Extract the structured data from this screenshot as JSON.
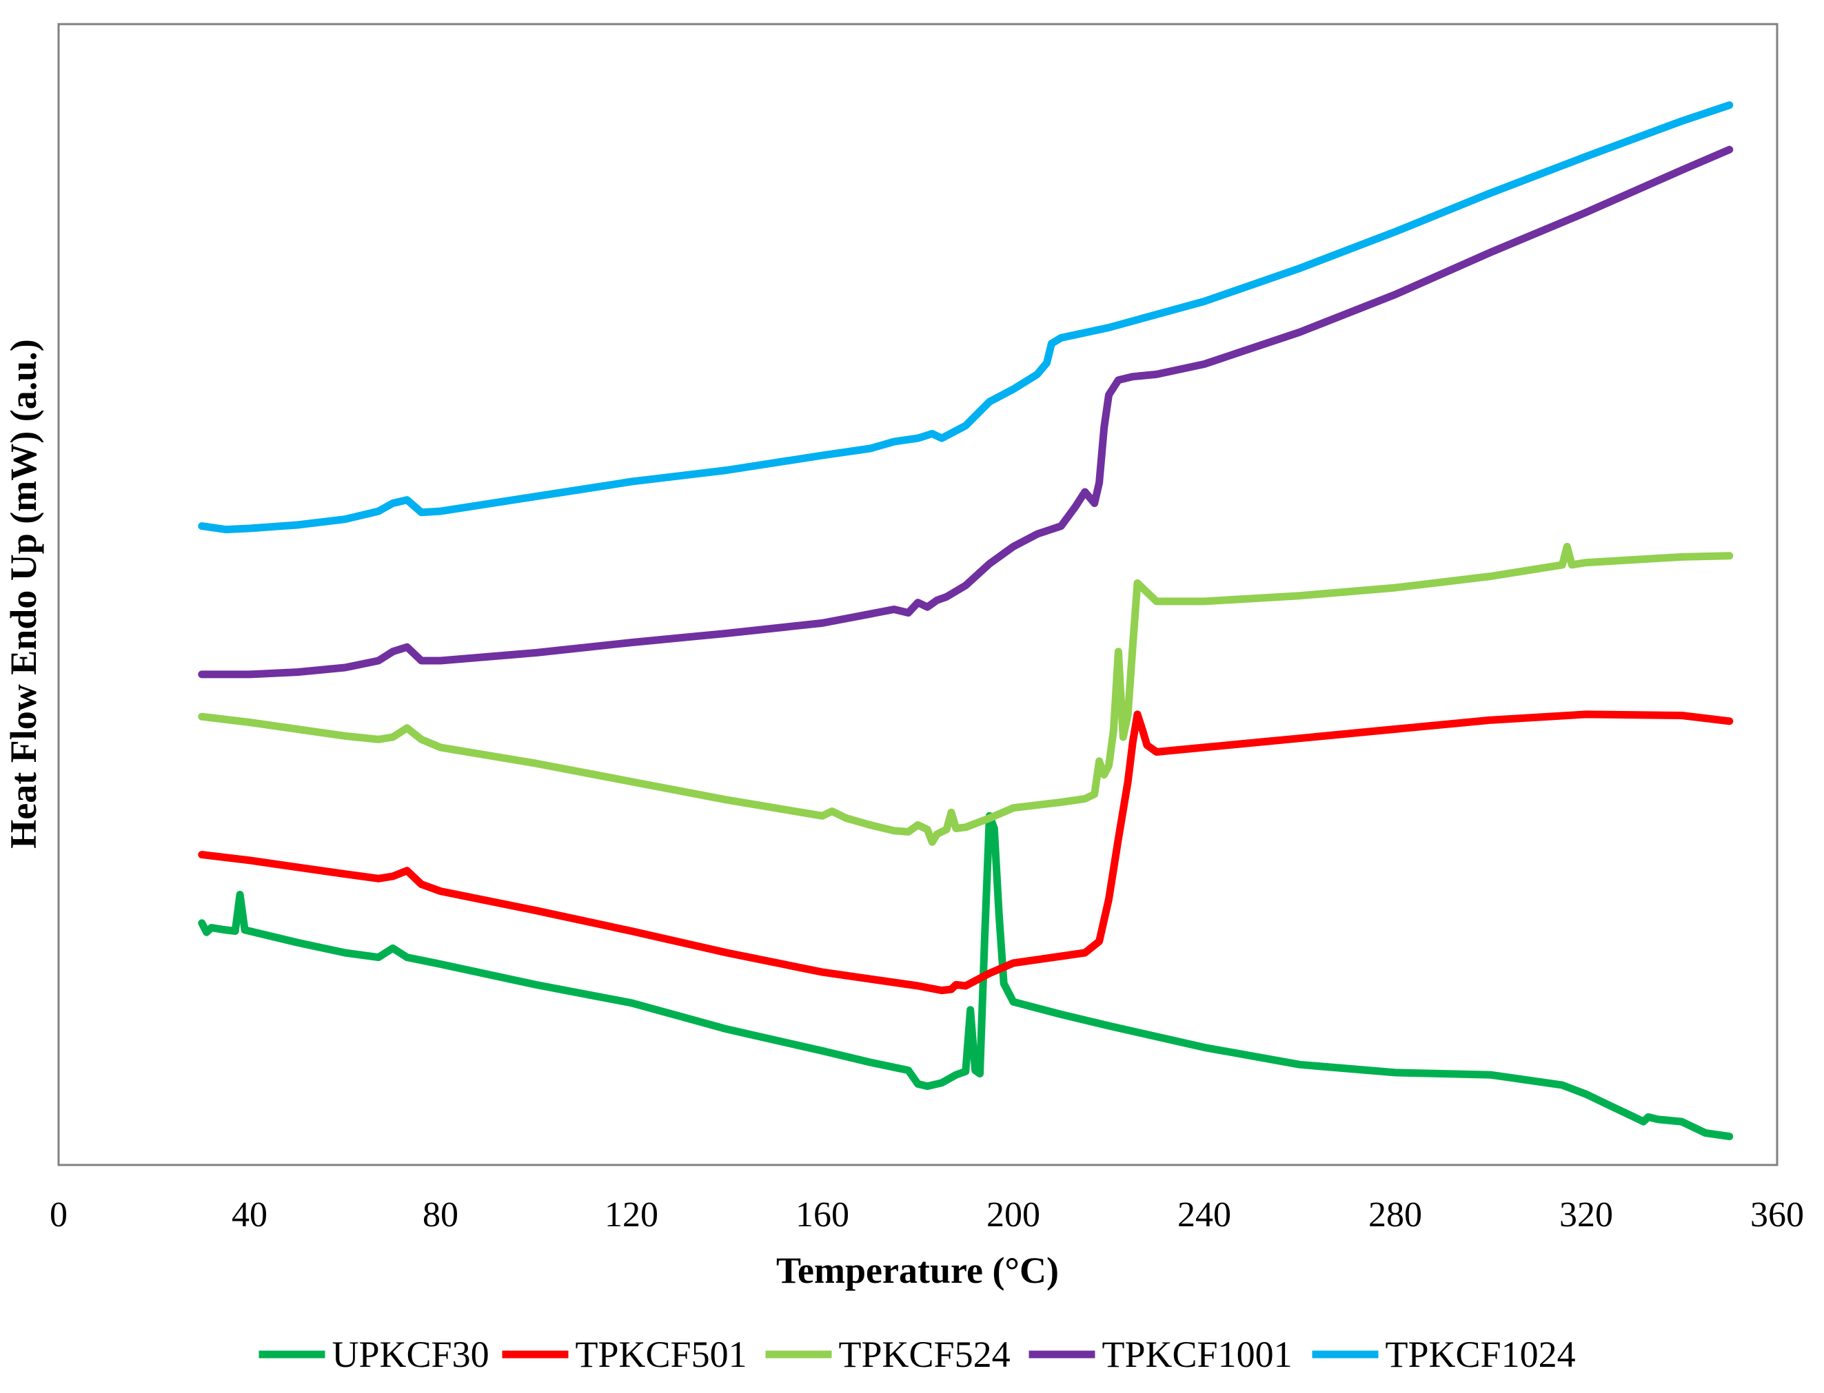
{
  "chart_data": {
    "type": "line",
    "title": "",
    "xlabel": "Temperature (°C)",
    "ylabel": "Heat Flow Endo Up (mW) (a.u.)",
    "xlim": [
      0,
      360
    ],
    "ylim": [
      0,
      100
    ],
    "x_ticks": [
      "0",
      "40",
      "80",
      "120",
      "160",
      "200",
      "240",
      "280",
      "320",
      "360"
    ],
    "grid": false,
    "legend_position": "bottom",
    "series": [
      {
        "name": "UPKCF30",
        "color": "#00B050",
        "points": [
          [
            30,
            21.2
          ],
          [
            31,
            20.4
          ],
          [
            32,
            20.8
          ],
          [
            35,
            20.6
          ],
          [
            37,
            20.5
          ],
          [
            38,
            23.7
          ],
          [
            39,
            20.6
          ],
          [
            40,
            20.5
          ],
          [
            50,
            19.5
          ],
          [
            60,
            18.6
          ],
          [
            67,
            18.2
          ],
          [
            70,
            19.0
          ],
          [
            73,
            18.2
          ],
          [
            80,
            17.6
          ],
          [
            100,
            15.8
          ],
          [
            120,
            14.2
          ],
          [
            140,
            11.9
          ],
          [
            160,
            10.0
          ],
          [
            170,
            9.0
          ],
          [
            178,
            8.3
          ],
          [
            180,
            7.1
          ],
          [
            182,
            6.9
          ],
          [
            185,
            7.2
          ],
          [
            188,
            7.9
          ],
          [
            190,
            8.2
          ],
          [
            191,
            13.6
          ],
          [
            192,
            8.3
          ],
          [
            193,
            8.0
          ],
          [
            194,
            20.0
          ],
          [
            195,
            30.6
          ],
          [
            196,
            29.5
          ],
          [
            197,
            22.0
          ],
          [
            198,
            15.9
          ],
          [
            200,
            14.3
          ],
          [
            210,
            13.2
          ],
          [
            220,
            12.2
          ],
          [
            240,
            10.3
          ],
          [
            260,
            8.8
          ],
          [
            280,
            8.1
          ],
          [
            300,
            7.9
          ],
          [
            315,
            7.0
          ],
          [
            320,
            6.2
          ],
          [
            325,
            5.2
          ],
          [
            330,
            4.2
          ],
          [
            332,
            3.8
          ],
          [
            333,
            4.2
          ],
          [
            335,
            4.0
          ],
          [
            340,
            3.8
          ],
          [
            345,
            2.8
          ],
          [
            350,
            2.5
          ]
        ]
      },
      {
        "name": "TPKCF501",
        "color": "#FF0000",
        "points": [
          [
            30,
            27.2
          ],
          [
            40,
            26.7
          ],
          [
            50,
            26.1
          ],
          [
            60,
            25.5
          ],
          [
            67,
            25.1
          ],
          [
            70,
            25.3
          ],
          [
            73,
            25.8
          ],
          [
            76,
            24.6
          ],
          [
            80,
            24.0
          ],
          [
            100,
            22.3
          ],
          [
            120,
            20.5
          ],
          [
            140,
            18.6
          ],
          [
            160,
            16.9
          ],
          [
            170,
            16.3
          ],
          [
            180,
            15.7
          ],
          [
            185,
            15.3
          ],
          [
            187,
            15.4
          ],
          [
            188,
            15.8
          ],
          [
            190,
            15.7
          ],
          [
            195,
            16.8
          ],
          [
            200,
            17.7
          ],
          [
            210,
            18.3
          ],
          [
            215,
            18.6
          ],
          [
            218,
            19.6
          ],
          [
            220,
            23.3
          ],
          [
            222,
            28.6
          ],
          [
            224,
            33.6
          ],
          [
            225,
            37.0
          ],
          [
            226,
            39.5
          ],
          [
            227,
            38.2
          ],
          [
            228,
            36.8
          ],
          [
            230,
            36.2
          ],
          [
            240,
            36.6
          ],
          [
            260,
            37.4
          ],
          [
            280,
            38.2
          ],
          [
            300,
            39.0
          ],
          [
            320,
            39.5
          ],
          [
            340,
            39.4
          ],
          [
            350,
            38.9
          ]
        ]
      },
      {
        "name": "TPKCF524",
        "color": "#92D050",
        "points": [
          [
            30,
            39.3
          ],
          [
            40,
            38.8
          ],
          [
            50,
            38.2
          ],
          [
            60,
            37.6
          ],
          [
            67,
            37.3
          ],
          [
            70,
            37.5
          ],
          [
            73,
            38.3
          ],
          [
            76,
            37.3
          ],
          [
            80,
            36.6
          ],
          [
            100,
            35.2
          ],
          [
            120,
            33.6
          ],
          [
            140,
            32.0
          ],
          [
            150,
            31.3
          ],
          [
            160,
            30.6
          ],
          [
            162,
            31.0
          ],
          [
            165,
            30.4
          ],
          [
            170,
            29.8
          ],
          [
            175,
            29.3
          ],
          [
            178,
            29.2
          ],
          [
            180,
            29.8
          ],
          [
            182,
            29.4
          ],
          [
            183,
            28.3
          ],
          [
            184,
            29.0
          ],
          [
            186,
            29.4
          ],
          [
            187,
            30.9
          ],
          [
            188,
            29.5
          ],
          [
            190,
            29.6
          ],
          [
            195,
            30.4
          ],
          [
            200,
            31.3
          ],
          [
            210,
            31.8
          ],
          [
            215,
            32.1
          ],
          [
            217,
            32.5
          ],
          [
            218,
            35.4
          ],
          [
            219,
            34.2
          ],
          [
            220,
            35.0
          ],
          [
            221,
            38.1
          ],
          [
            222,
            45.0
          ],
          [
            223,
            37.5
          ],
          [
            224,
            39.5
          ],
          [
            225,
            45.4
          ],
          [
            226,
            51.0
          ],
          [
            228,
            50.2
          ],
          [
            230,
            49.4
          ],
          [
            240,
            49.4
          ],
          [
            260,
            49.9
          ],
          [
            280,
            50.6
          ],
          [
            300,
            51.6
          ],
          [
            315,
            52.6
          ],
          [
            316,
            54.2
          ],
          [
            317,
            52.6
          ],
          [
            320,
            52.8
          ],
          [
            340,
            53.3
          ],
          [
            350,
            53.4
          ]
        ]
      },
      {
        "name": "TPKCF1001",
        "color": "#7030A0",
        "points": [
          [
            30,
            43.0
          ],
          [
            40,
            43.0
          ],
          [
            50,
            43.2
          ],
          [
            60,
            43.6
          ],
          [
            67,
            44.2
          ],
          [
            70,
            45.0
          ],
          [
            73,
            45.4
          ],
          [
            76,
            44.2
          ],
          [
            80,
            44.2
          ],
          [
            100,
            44.9
          ],
          [
            120,
            45.8
          ],
          [
            140,
            46.6
          ],
          [
            160,
            47.5
          ],
          [
            170,
            48.3
          ],
          [
            175,
            48.7
          ],
          [
            178,
            48.4
          ],
          [
            180,
            49.3
          ],
          [
            182,
            48.9
          ],
          [
            184,
            49.5
          ],
          [
            186,
            49.8
          ],
          [
            190,
            50.8
          ],
          [
            195,
            52.7
          ],
          [
            200,
            54.2
          ],
          [
            205,
            55.3
          ],
          [
            210,
            56.0
          ],
          [
            213,
            57.7
          ],
          [
            215,
            59.0
          ],
          [
            217,
            58.0
          ],
          [
            218,
            59.8
          ],
          [
            219,
            64.6
          ],
          [
            220,
            67.5
          ],
          [
            222,
            68.8
          ],
          [
            225,
            69.1
          ],
          [
            230,
            69.3
          ],
          [
            240,
            70.2
          ],
          [
            260,
            73.0
          ],
          [
            280,
            76.3
          ],
          [
            300,
            80.0
          ],
          [
            320,
            83.5
          ],
          [
            340,
            87.2
          ],
          [
            350,
            89.0
          ]
        ]
      },
      {
        "name": "TPKCF1024",
        "color": "#00B0F0",
        "points": [
          [
            30,
            56.0
          ],
          [
            35,
            55.7
          ],
          [
            40,
            55.8
          ],
          [
            50,
            56.1
          ],
          [
            60,
            56.6
          ],
          [
            67,
            57.3
          ],
          [
            70,
            58.0
          ],
          [
            73,
            58.3
          ],
          [
            76,
            57.2
          ],
          [
            80,
            57.3
          ],
          [
            100,
            58.6
          ],
          [
            120,
            59.9
          ],
          [
            140,
            60.9
          ],
          [
            160,
            62.2
          ],
          [
            170,
            62.8
          ],
          [
            175,
            63.4
          ],
          [
            180,
            63.7
          ],
          [
            183,
            64.1
          ],
          [
            185,
            63.7
          ],
          [
            190,
            64.8
          ],
          [
            195,
            66.9
          ],
          [
            200,
            68.0
          ],
          [
            205,
            69.3
          ],
          [
            207,
            70.3
          ],
          [
            208,
            72.0
          ],
          [
            210,
            72.5
          ],
          [
            220,
            73.4
          ],
          [
            240,
            75.7
          ],
          [
            260,
            78.6
          ],
          [
            280,
            81.8
          ],
          [
            300,
            85.2
          ],
          [
            320,
            88.4
          ],
          [
            340,
            91.5
          ],
          [
            350,
            92.9
          ]
        ]
      }
    ]
  }
}
